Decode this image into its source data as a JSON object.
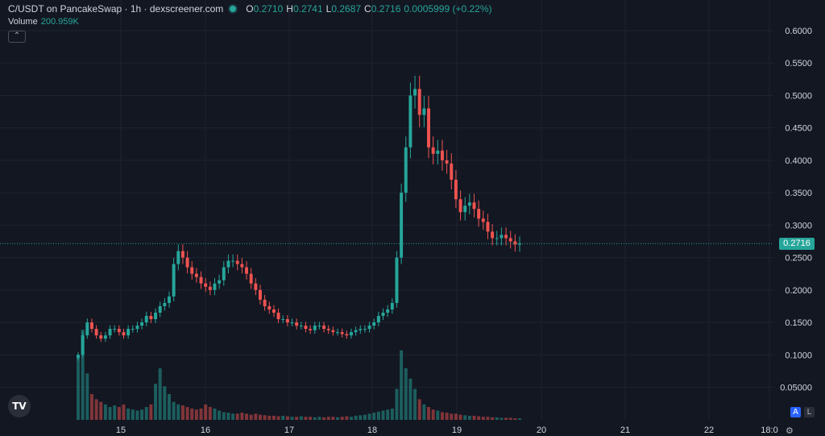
{
  "header": {
    "title": "C/USDT on PancakeSwap · 1h · dexscreener.com",
    "open_label": "O",
    "open": "0.2710",
    "high_label": "H",
    "high": "0.2741",
    "low_label": "L",
    "low": "0.2687",
    "close_label": "C",
    "close": "0.2716",
    "change": "0.0005999 (+0.22%)"
  },
  "volume": {
    "label": "Volume",
    "value": "200.959K"
  },
  "collapse_icon": "chevron-up-icon",
  "last_price_badge": "0.2716",
  "scale_buttons": {
    "auto": "A",
    "log": "L"
  },
  "logo": "TV",
  "colors": {
    "background": "#131722",
    "up": "#26a69a",
    "down": "#ef5350",
    "grid": "#1e2330",
    "text": "#d1d4dc"
  },
  "chart_data": {
    "type": "candlestick",
    "title": "C/USDT on PancakeSwap · 1h · dexscreener.com",
    "y_ticks": [
      "0.6000",
      "0.5500",
      "0.5000",
      "0.4500",
      "0.4000",
      "0.3500",
      "0.3000",
      "0.2500",
      "0.2000",
      "0.1500",
      "0.1000",
      "0.05000"
    ],
    "y_tick_values": [
      0.6,
      0.55,
      0.5,
      0.45,
      0.4,
      0.35,
      0.3,
      0.25,
      0.2,
      0.15,
      0.1,
      0.05
    ],
    "x_ticks": [
      "15",
      "16",
      "17",
      "18",
      "19",
      "20",
      "21",
      "22",
      "18:0"
    ],
    "ylim": [
      0,
      0.62
    ],
    "last_price": 0.2716,
    "grid": true,
    "price_series": [
      0.1,
      0.13,
      0.15,
      0.14,
      0.13,
      0.125,
      0.13,
      0.14,
      0.14,
      0.135,
      0.13,
      0.14,
      0.14,
      0.145,
      0.15,
      0.16,
      0.155,
      0.165,
      0.175,
      0.18,
      0.19,
      0.24,
      0.26,
      0.25,
      0.235,
      0.225,
      0.22,
      0.21,
      0.205,
      0.2,
      0.21,
      0.215,
      0.235,
      0.245,
      0.245,
      0.24,
      0.235,
      0.225,
      0.21,
      0.2,
      0.185,
      0.175,
      0.17,
      0.165,
      0.155,
      0.155,
      0.15,
      0.15,
      0.145,
      0.145,
      0.14,
      0.138,
      0.145,
      0.145,
      0.14,
      0.138,
      0.135,
      0.135,
      0.132,
      0.13,
      0.135,
      0.138,
      0.14,
      0.14,
      0.145,
      0.15,
      0.16,
      0.165,
      0.17,
      0.18,
      0.25,
      0.35,
      0.42,
      0.5,
      0.51,
      0.47,
      0.48,
      0.42,
      0.41,
      0.415,
      0.4,
      0.395,
      0.37,
      0.34,
      0.32,
      0.33,
      0.335,
      0.325,
      0.31,
      0.305,
      0.29,
      0.28,
      0.28,
      0.285,
      0.28,
      0.275,
      0.27,
      0.2716
    ],
    "volume_series": [
      120,
      175,
      90,
      50,
      40,
      35,
      30,
      25,
      28,
      25,
      30,
      22,
      20,
      18,
      20,
      25,
      30,
      70,
      100,
      65,
      50,
      35,
      30,
      28,
      25,
      22,
      20,
      22,
      30,
      25,
      22,
      18,
      15,
      14,
      12,
      12,
      14,
      12,
      10,
      12,
      10,
      9,
      8,
      8,
      7,
      8,
      7,
      6,
      6,
      7,
      6,
      6,
      5,
      6,
      5,
      6,
      6,
      5,
      6,
      7,
      6,
      8,
      9,
      10,
      12,
      14,
      16,
      18,
      20,
      22,
      60,
      135,
      100,
      80,
      60,
      40,
      30,
      25,
      20,
      18,
      15,
      14,
      12,
      12,
      10,
      9,
      8,
      8,
      7,
      6,
      6,
      5,
      5,
      4,
      4,
      4,
      3,
      3
    ]
  }
}
